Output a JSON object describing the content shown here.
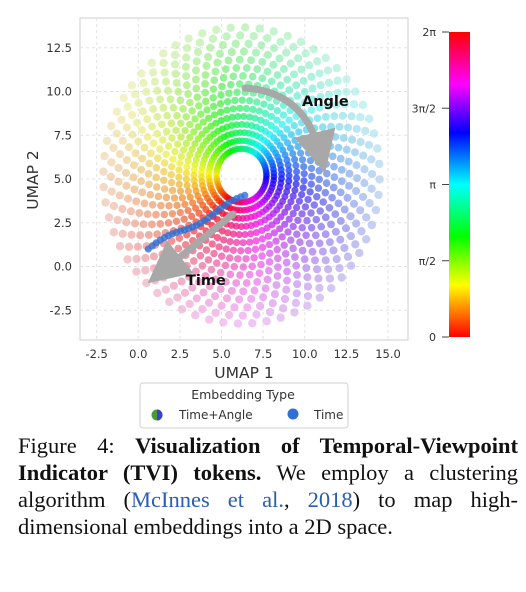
{
  "figure": {
    "annotations": {
      "angle": "Angle",
      "time": "Time"
    },
    "colorbar": {
      "ticks": [
        "2π",
        "3π/2",
        "π",
        "π/2",
        "0"
      ]
    },
    "legend": {
      "title": "Embedding Type",
      "entries": [
        "Time+Angle",
        "Time"
      ]
    }
  },
  "chart_data": {
    "type": "scatter",
    "xlabel": "UMAP 1",
    "ylabel": "UMAP 2",
    "xlim": [
      -3.5,
      16.2
    ],
    "ylim": [
      -4.2,
      14.2
    ],
    "xticks": [
      "-2.5",
      "0.0",
      "2.5",
      "5.0",
      "7.5",
      "10.0",
      "12.5",
      "15.0"
    ],
    "yticks": [
      "12.5",
      "10.0",
      "7.5",
      "5.0",
      "2.5",
      "0.0",
      "-2.5"
    ],
    "xtick_values": [
      -2.5,
      0.0,
      2.5,
      5.0,
      7.5,
      10.0,
      12.5,
      15.0
    ],
    "ytick_values": [
      12.5,
      10.0,
      7.5,
      5.0,
      2.5,
      0.0,
      -2.5
    ],
    "grid": true,
    "legend_position": "bottom-center",
    "series": [
      {
        "name": "Time+Angle",
        "description_of_structure": ""
      },
      {
        "name": "Time"
      }
    ],
    "ring_center": [
      6.2,
      5.2
    ],
    "ring_radius_range": [
      1.5,
      8.3
    ],
    "spokes": 60,
    "time_series_segment": {
      "x": [
        0.6,
        6.4
      ],
      "y": [
        1.0,
        4.0
      ]
    }
  },
  "caption": {
    "figure_label": "Figure 4:",
    "bold_title": "Visualization of Temporal-Viewpoint Indicator (TVI) tokens.",
    "text_before_cite": "We employ a clustering algorithm (",
    "cite_author": "McInnes et al.",
    "cite_sep": ", ",
    "cite_year": "2018",
    "text_after_cite": ") to map high-dimensional embeddings into a 2D space."
  }
}
